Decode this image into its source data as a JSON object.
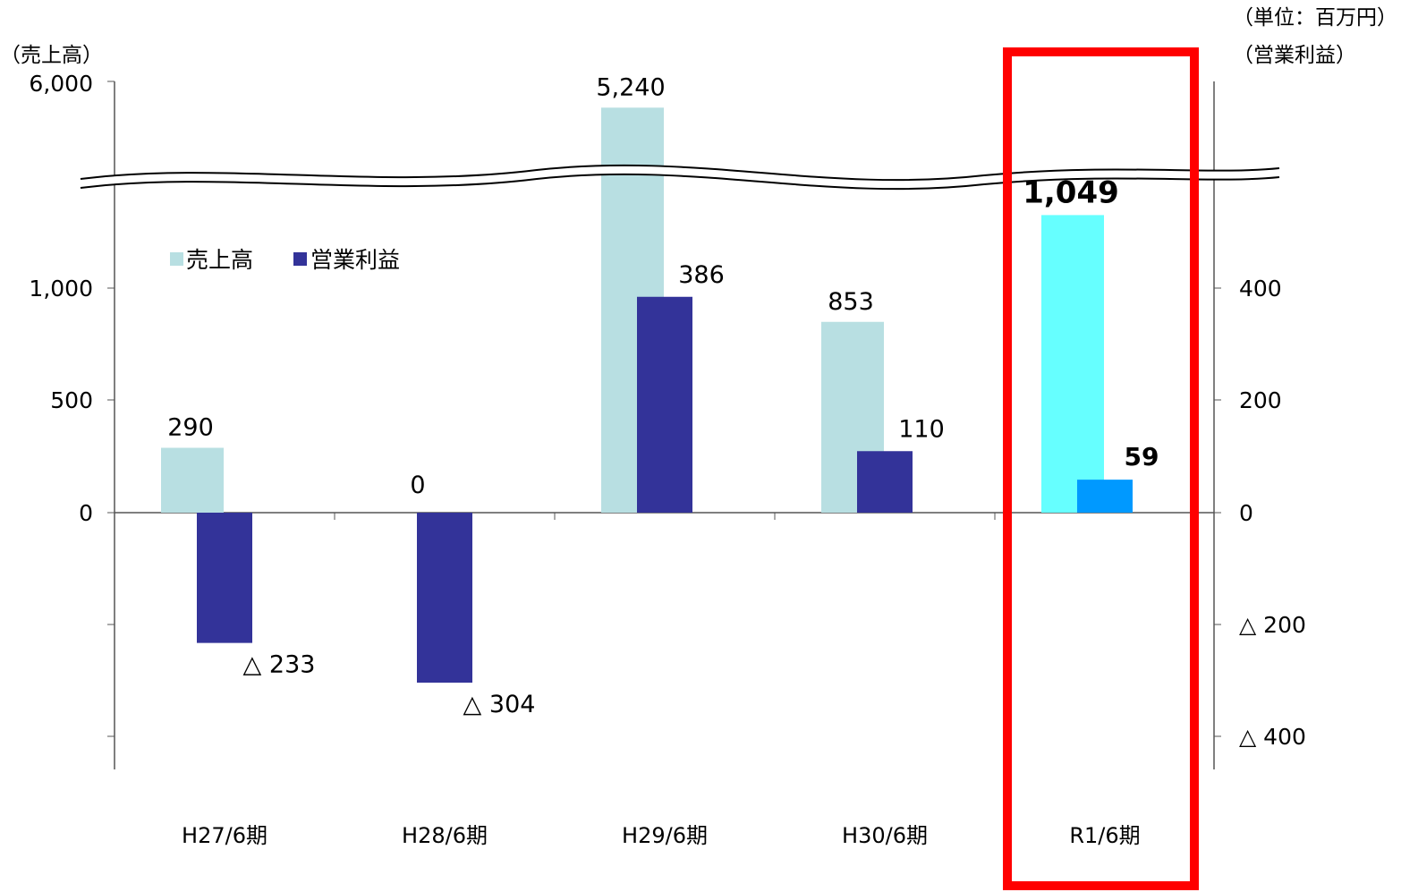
{
  "chart_data": {
    "type": "bar",
    "title": "",
    "unit_note": "（単位：百万円）",
    "left_axis": {
      "label": "（売上高）",
      "ticks": [
        "6,000",
        "1,000",
        "500",
        "0"
      ],
      "tick_values": [
        6000,
        1000,
        500,
        0
      ],
      "broken": true
    },
    "right_axis": {
      "label": "（営業利益）",
      "ticks": [
        "400",
        "200",
        "0",
        "△ 200",
        "△ 400"
      ],
      "tick_values": [
        400,
        200,
        0,
        -200,
        -400
      ],
      "ylim": [
        -450,
        400
      ]
    },
    "categories": [
      "H27/6期",
      "H28/6期",
      "H29/6期",
      "H30/6期",
      "R1/6期"
    ],
    "series": [
      {
        "name": "売上高",
        "axis": "left",
        "values": [
          290,
          0,
          5240,
          853,
          1049
        ],
        "labels": [
          "290",
          "0",
          "5,240",
          "853",
          "1,049"
        ],
        "color": "#b8dfe2",
        "highlight_color": "#66ffff"
      },
      {
        "name": "営業利益",
        "axis": "right",
        "values": [
          -233,
          -304,
          386,
          110,
          59
        ],
        "labels": [
          "△ 233",
          "△ 304",
          "386",
          "110",
          "59"
        ],
        "color": "#333399",
        "highlight_color": "#0099ff"
      }
    ],
    "highlight_index": 4,
    "highlight_box_color": "#ff0000",
    "legend_position": "top-left inside plot"
  }
}
